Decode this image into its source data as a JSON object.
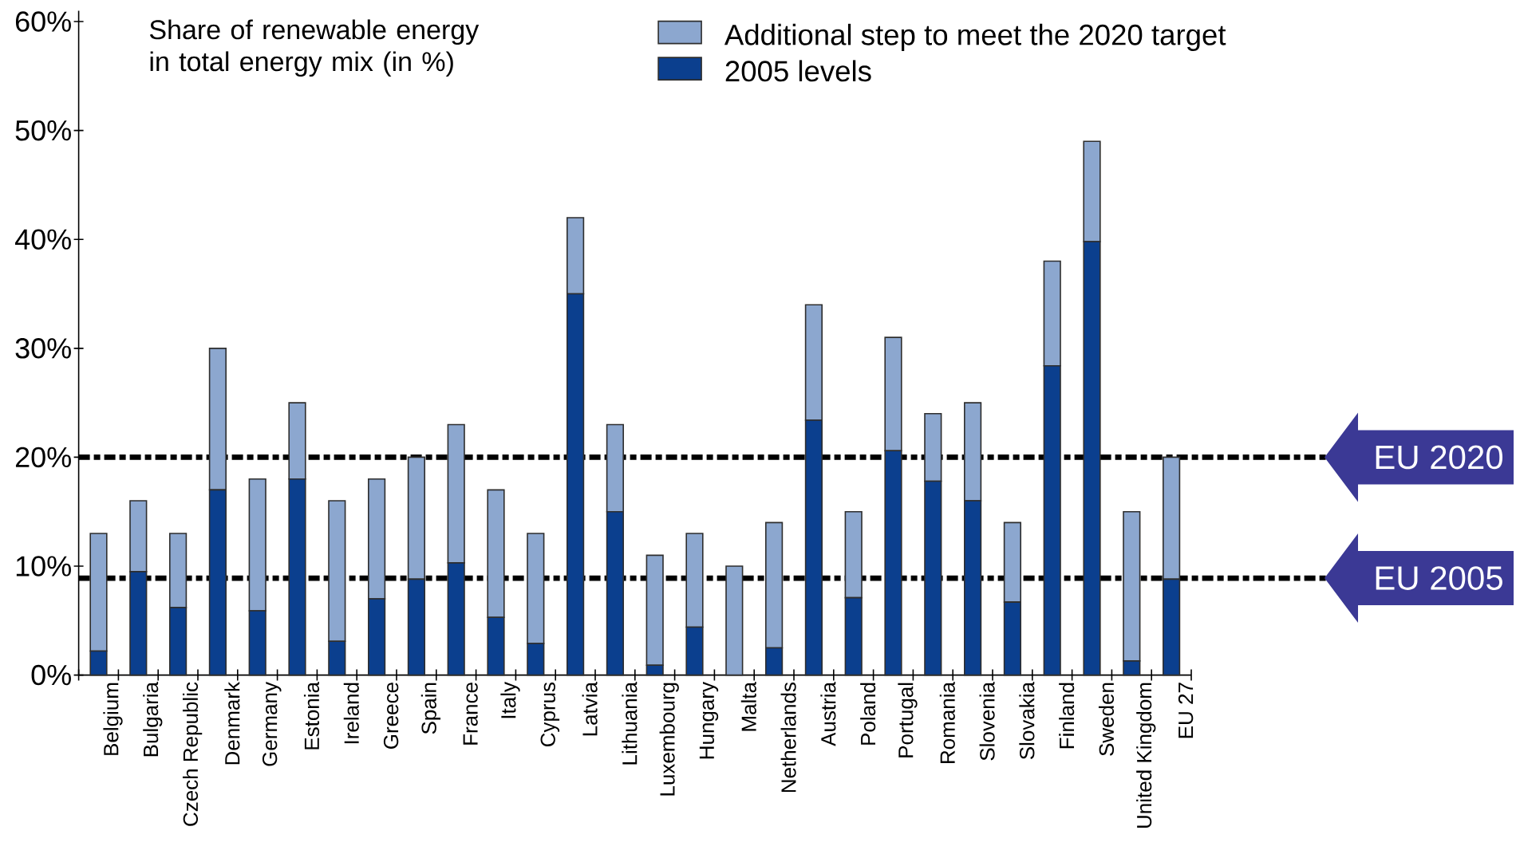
{
  "chart_data": {
    "type": "bar",
    "stacked": true,
    "title": "Share of renewable energy in total energy mix (in %)",
    "categories": [
      "Belgium",
      "Bulgaria",
      "Czech Republic",
      "Denmark",
      "Germany",
      "Estonia",
      "Ireland",
      "Greece",
      "Spain",
      "France",
      "Italy",
      "Cyprus",
      "Latvia",
      "Lithuania",
      "Luxembourg",
      "Hungary",
      "Malta",
      "Netherlands",
      "Austria",
      "Poland",
      "Portugal",
      "Romania",
      "Slovenia",
      "Slovakia",
      "Finland",
      "Sweden",
      "United Kingdom",
      "EU 27"
    ],
    "series": [
      {
        "name": "2005 levels",
        "color": "#0b3f8e",
        "values": [
          2.2,
          9.5,
          6.2,
          17,
          5.9,
          18,
          3.1,
          7,
          8.8,
          10.3,
          5.3,
          2.9,
          35,
          15,
          0.9,
          4.4,
          0,
          2.5,
          23.4,
          7.1,
          20.6,
          17.8,
          16,
          6.7,
          28.4,
          39.8,
          1.3,
          8.8
        ]
      },
      {
        "name": "Additional step to meet the 2020 target",
        "color": "#8ca7cf",
        "values": [
          10.8,
          6.5,
          6.8,
          13,
          12.1,
          7,
          12.9,
          11,
          11.2,
          12.7,
          11.7,
          10.1,
          7,
          8,
          10.1,
          8.6,
          10,
          11.5,
          10.6,
          7.9,
          10.4,
          6.2,
          9,
          7.3,
          9.6,
          9.2,
          13.7,
          11.2
        ]
      }
    ],
    "ylim": [
      0,
      61
    ],
    "yticks": [
      {
        "value": 0,
        "label": "0%"
      },
      {
        "value": 10,
        "label": "10%"
      },
      {
        "value": 20,
        "label": "20%"
      },
      {
        "value": 30,
        "label": "30%"
      },
      {
        "value": 40,
        "label": "40%"
      },
      {
        "value": 50,
        "label": "50%"
      },
      {
        "value": 60,
        "label": "60%"
      }
    ],
    "ref_lines": [
      {
        "axis": "y",
        "value": 20,
        "label": "EU 2020",
        "color": "#000000",
        "line_style": "dashed"
      },
      {
        "axis": "y",
        "value": 8.9,
        "label": "EU 2005",
        "color": "#000000",
        "line_style": "dashed"
      }
    ],
    "legend": "top right"
  }
}
